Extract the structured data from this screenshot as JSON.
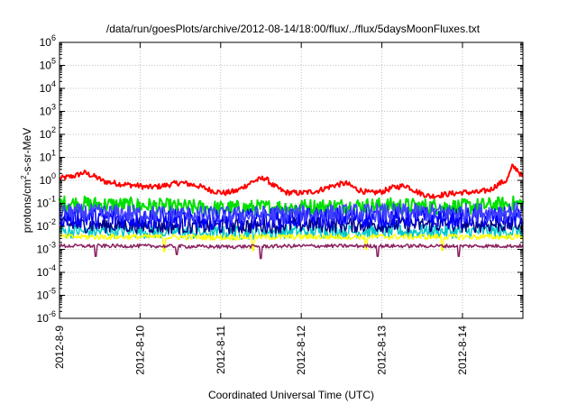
{
  "chart_data": {
    "type": "line",
    "title": "/data/run/goesPlots/archive/2012-08-14/18:00/flux/../flux/5daysMoonFluxes.txt",
    "xlabel": "Coordinated Universal Time (UTC)",
    "ylabel": {
      "pre": "protons/cm",
      "sup": "2",
      "post": "-s-sr-MeV"
    },
    "x_ticks": [
      "2012-8-9",
      "2012-8-10",
      "2012-8-11",
      "2012-8-12",
      "2012-8-13",
      "2012-8-14"
    ],
    "xlim_days": [
      0,
      5.75
    ],
    "y_scale": "log",
    "ylim": [
      1e-06,
      1000000.0
    ],
    "y_ticks": [
      {
        "base": "10",
        "exp": "-6"
      },
      {
        "base": "10",
        "exp": "-5"
      },
      {
        "base": "10",
        "exp": "-4"
      },
      {
        "base": "10",
        "exp": "-3"
      },
      {
        "base": "10",
        "exp": "-2"
      },
      {
        "base": "10",
        "exp": "-1"
      },
      {
        "base": "10",
        "exp": "0"
      },
      {
        "base": "10",
        "exp": "1"
      },
      {
        "base": "10",
        "exp": "2"
      },
      {
        "base": "10",
        "exp": "3"
      },
      {
        "base": "10",
        "exp": "4"
      },
      {
        "base": "10",
        "exp": "5"
      },
      {
        "base": "10",
        "exp": "6"
      }
    ],
    "grid": true,
    "series": [
      {
        "color": "#ff0000",
        "width": 2.0,
        "noise": 0.12,
        "spikes": [],
        "points": [
          [
            0,
            1.2
          ],
          [
            0.2,
            1.6
          ],
          [
            0.3,
            2.2
          ],
          [
            0.45,
            1.4
          ],
          [
            0.55,
            0.9
          ],
          [
            0.75,
            0.7
          ],
          [
            0.95,
            0.6
          ],
          [
            1.1,
            0.5
          ],
          [
            1.25,
            0.55
          ],
          [
            1.5,
            0.8
          ],
          [
            1.7,
            0.6
          ],
          [
            1.9,
            0.35
          ],
          [
            2.05,
            0.28
          ],
          [
            2.2,
            0.35
          ],
          [
            2.4,
            0.9
          ],
          [
            2.55,
            1.3
          ],
          [
            2.65,
            0.6
          ],
          [
            2.8,
            0.3
          ],
          [
            3.0,
            0.28
          ],
          [
            3.2,
            0.35
          ],
          [
            3.4,
            0.6
          ],
          [
            3.55,
            0.75
          ],
          [
            3.7,
            0.4
          ],
          [
            3.85,
            0.28
          ],
          [
            4.0,
            0.32
          ],
          [
            4.15,
            0.5
          ],
          [
            4.3,
            0.6
          ],
          [
            4.45,
            0.3
          ],
          [
            4.6,
            0.2
          ],
          [
            4.8,
            0.25
          ],
          [
            5.0,
            0.3
          ],
          [
            5.2,
            0.3
          ],
          [
            5.35,
            0.4
          ],
          [
            5.45,
            0.7
          ],
          [
            5.55,
            1.0
          ],
          [
            5.62,
            4.0
          ],
          [
            5.68,
            3.0
          ],
          [
            5.75,
            1.3
          ]
        ]
      },
      {
        "color": "#00e000",
        "width": 2.0,
        "noise": 0.35,
        "spikes": [],
        "points": [
          [
            0,
            0.1
          ],
          [
            1,
            0.08
          ],
          [
            2,
            0.06
          ],
          [
            3,
            0.07
          ],
          [
            4,
            0.08
          ],
          [
            5,
            0.07
          ],
          [
            5.75,
            0.1
          ]
        ]
      },
      {
        "color": "#00c8c8",
        "width": 1.5,
        "noise": 0.3,
        "spikes": [],
        "points": [
          [
            0,
            0.006
          ],
          [
            1,
            0.006
          ],
          [
            2,
            0.005
          ],
          [
            3,
            0.006
          ],
          [
            4,
            0.006
          ],
          [
            5,
            0.006
          ],
          [
            5.75,
            0.006
          ]
        ]
      },
      {
        "color": "#00008b",
        "width": 1.5,
        "noise": 0.35,
        "spikes": [],
        "points": [
          [
            0,
            0.012
          ],
          [
            1,
            0.011
          ],
          [
            2,
            0.01
          ],
          [
            3,
            0.012
          ],
          [
            4,
            0.012
          ],
          [
            5,
            0.012
          ],
          [
            5.75,
            0.012
          ]
        ]
      },
      {
        "color": "#0000ff",
        "width": 1.5,
        "noise": 0.45,
        "spikes": [],
        "points": [
          [
            0,
            0.025
          ],
          [
            1,
            0.022
          ],
          [
            2,
            0.02
          ],
          [
            3,
            0.024
          ],
          [
            4,
            0.025
          ],
          [
            5,
            0.024
          ],
          [
            5.75,
            0.025
          ]
        ]
      },
      {
        "color": "#4040ff",
        "width": 1.5,
        "noise": 0.4,
        "spikes": [],
        "points": [
          [
            0,
            0.04
          ],
          [
            1,
            0.035
          ],
          [
            2,
            0.03
          ],
          [
            3,
            0.035
          ],
          [
            4,
            0.04
          ],
          [
            5,
            0.04
          ],
          [
            5.75,
            0.045
          ]
        ]
      },
      {
        "color": "#ffff00",
        "width": 1.5,
        "noise": 0.12,
        "spikes": [
          [
            1.3,
            0.0008
          ],
          [
            2.4,
            0.0009
          ],
          [
            3.8,
            0.001
          ],
          [
            4.75,
            0.0009
          ]
        ],
        "points": [
          [
            0,
            0.0035
          ],
          [
            1,
            0.0035
          ],
          [
            2,
            0.0033
          ],
          [
            3,
            0.0035
          ],
          [
            4,
            0.0035
          ],
          [
            5,
            0.0035
          ],
          [
            5.75,
            0.0035
          ]
        ]
      },
      {
        "color": "#8b2060",
        "width": 1.5,
        "noise": 0.08,
        "spikes": [
          [
            0.45,
            0.0005
          ],
          [
            1.45,
            0.0006
          ],
          [
            2.5,
            0.0004
          ],
          [
            3.95,
            0.0005
          ],
          [
            4.95,
            0.0005
          ]
        ],
        "points": [
          [
            0,
            0.0014
          ],
          [
            1,
            0.0014
          ],
          [
            2,
            0.0013
          ],
          [
            3,
            0.0014
          ],
          [
            4,
            0.0014
          ],
          [
            5,
            0.0014
          ],
          [
            5.75,
            0.0014
          ]
        ]
      }
    ]
  }
}
